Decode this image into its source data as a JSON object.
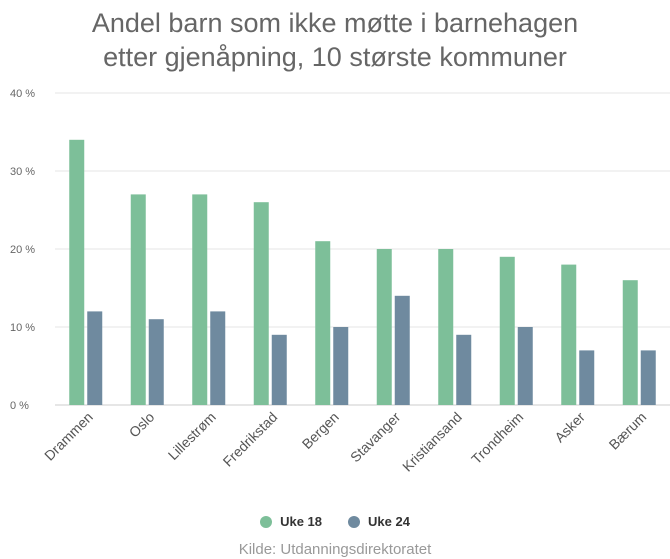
{
  "chart_data": {
    "type": "bar",
    "title_lines": [
      "Andel barn som ikke møtte i barnehagen",
      "etter gjenåpning, 10 største kommuner"
    ],
    "categories": [
      "Drammen",
      "Oslo",
      "Lillestrøm",
      "Fredrikstad",
      "Bergen",
      "Stavanger",
      "Kristiansand",
      "Trondheim",
      "Asker",
      "Bærum"
    ],
    "series": [
      {
        "name": "Uke 18",
        "color": "#7dbf99",
        "values": [
          34,
          27,
          27,
          26,
          21,
          20,
          20,
          19,
          18,
          16
        ]
      },
      {
        "name": "Uke 24",
        "color": "#6f8a9f",
        "values": [
          12,
          11,
          12,
          9,
          10,
          14,
          9,
          10,
          7,
          7
        ]
      }
    ],
    "y_ticks": [
      "0 %",
      "10 %",
      "20 %",
      "30 %",
      "40 %"
    ],
    "ylim": [
      0,
      40
    ],
    "grid": true,
    "legend_position": "bottom",
    "source": "Kilde: Utdanningsdirektoratet"
  }
}
